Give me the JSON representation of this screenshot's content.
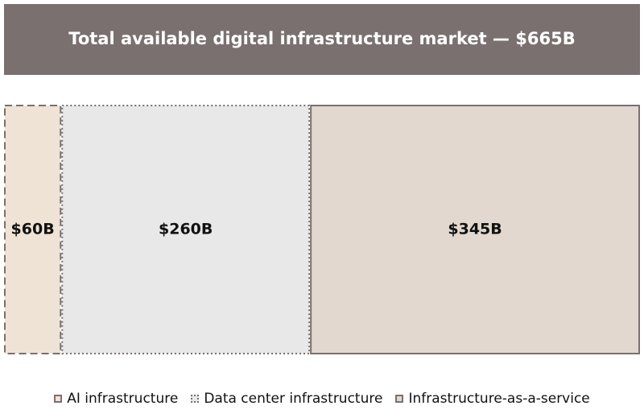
{
  "chart_data": {
    "type": "treemap",
    "title": "Total available digital infrastructure market — $665B",
    "series": [
      {
        "name": "AI infrastructure",
        "values": [
          60
        ],
        "value_labels": [
          "$60B"
        ],
        "color": "#efe3d5",
        "border_color": "#7a7070",
        "border_style": "dashed"
      },
      {
        "name": "Data center infrastructure",
        "values": [
          260
        ],
        "value_labels": [
          "$260B"
        ],
        "color": "#e8e8e8",
        "border_color": "#7a7070",
        "border_style": "dotted"
      },
      {
        "name": "Infrastructure-as-a-service",
        "values": [
          345
        ],
        "value_labels": [
          "$345B"
        ],
        "color": "#e2d8cf",
        "border_color": "#7a7070",
        "border_style": "solid"
      }
    ],
    "title_color": "#7a7070"
  }
}
